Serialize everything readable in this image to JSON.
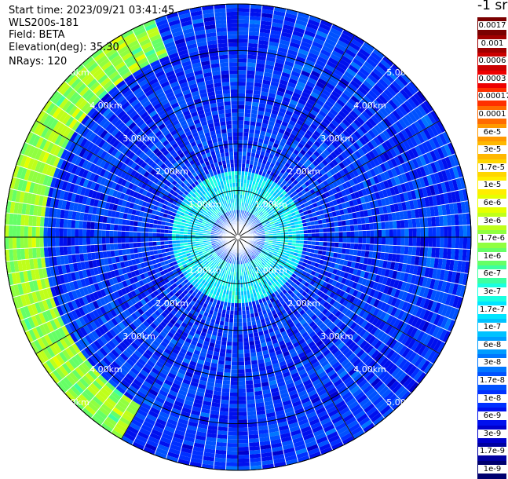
{
  "header": {
    "start_time": "Start time: 2023/09/21 03:41:45",
    "instrument": "WLS200s-181",
    "field": "Field: BETA",
    "elevation": "Elevation(deg): 35.30",
    "nrays": "NRays: 120"
  },
  "colorbar": {
    "title": "-1 sr",
    "labels": [
      "0.0017",
      "0.001",
      "0.0006",
      "0.0003",
      "0.00017",
      "0.0001",
      "6e-5",
      "3e-5",
      "1.7e-5",
      "1e-5",
      "6e-6",
      "3e-6",
      "1.7e-6",
      "1e-6",
      "6e-7",
      "3e-7",
      "1.7e-7",
      "1e-7",
      "6e-8",
      "3e-8",
      "1.7e-8",
      "1e-8",
      "6e-9",
      "3e-9",
      "1.7e-9",
      "1e-9"
    ],
    "colors": [
      "#7a0000",
      "#a00000",
      "#cc0000",
      "#ee0000",
      "#ff3000",
      "#ff6a00",
      "#ff9900",
      "#ffb800",
      "#ffd600",
      "#ffee00",
      "#e6ff00",
      "#bfff1a",
      "#90ff40",
      "#66ff66",
      "#3dffa0",
      "#1affe0",
      "#00e5ff",
      "#00c2ff",
      "#009dff",
      "#0077ff",
      "#0052ff",
      "#0030ff",
      "#0010ee",
      "#0000cc",
      "#0000a0",
      "#00006e"
    ]
  },
  "chart_data": {
    "type": "heatmap",
    "plot_type": "PPI polar scan",
    "field": "BETA",
    "units": "-1 sr",
    "elevation_deg": 35.3,
    "n_rays": 120,
    "range_rings_km": [
      "1.00km",
      "2.00km",
      "3.00km",
      "4.00km",
      "5.00km"
    ],
    "max_range_km": 5.0,
    "radial_lines_deg": [
      0,
      30,
      60,
      90,
      120,
      150,
      180,
      210,
      240,
      270,
      300,
      330
    ],
    "colorbar_ticks": [
      "0.0017",
      "0.001",
      "0.0006",
      "0.0003",
      "0.00017",
      "0.0001",
      "6e-5",
      "3e-5",
      "1.7e-5",
      "1e-5",
      "6e-6",
      "3e-6",
      "1.7e-6",
      "1e-6",
      "6e-7",
      "3e-7",
      "1.7e-7",
      "1e-7",
      "6e-8",
      "3e-8",
      "1.7e-8",
      "1e-8",
      "6e-9",
      "3e-9",
      "1.7e-9",
      "1e-9"
    ],
    "description_bands": [
      {
        "range_km": [
          0.0,
          0.6
        ],
        "value": "1.7e-8"
      },
      {
        "range_km": [
          0.6,
          1.4
        ],
        "value": "1.7e-7"
      },
      {
        "range_km": [
          1.4,
          5.0
        ],
        "value": "1e-8"
      }
    ],
    "enhanced_sector": {
      "azimuth_deg": [
        210,
        340
      ],
      "range_km": [
        4.2,
        5.0
      ],
      "value": "1.7e-6"
    }
  }
}
